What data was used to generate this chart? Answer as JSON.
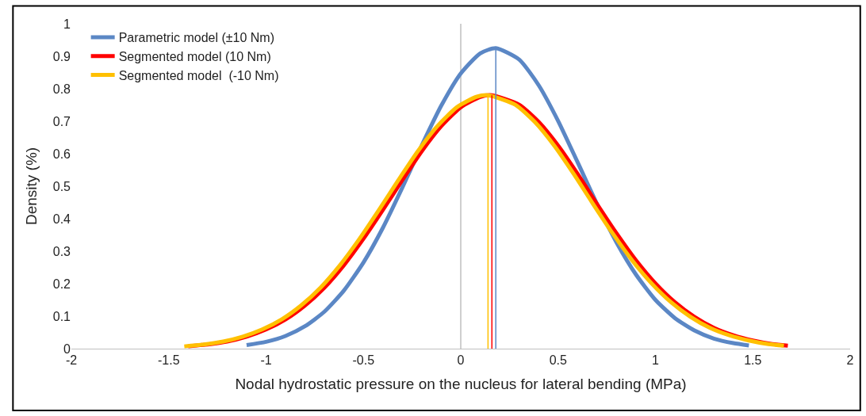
{
  "chart_data": {
    "type": "line",
    "xlabel": "Nodal hydrostatic pressure on the nucleus for lateral bending (MPa)",
    "ylabel": "Density (%)",
    "xlim": [
      -2,
      2
    ],
    "xticks": [
      -2,
      -1.5,
      -1,
      -0.5,
      0,
      0.5,
      1,
      1.5,
      2
    ],
    "ylim": [
      0,
      1
    ],
    "yticks": [
      0,
      0.1,
      0.2,
      0.3,
      0.4,
      0.5,
      0.6,
      0.7,
      0.8,
      0.9,
      1
    ],
    "grid": false,
    "legend": "top left",
    "ref_lines": [
      {
        "axis": "x",
        "value": 0,
        "color": "#bfbfbf"
      }
    ],
    "series": [
      {
        "name": "Parametric model (±10 Nm)",
        "color": "#5b87c5",
        "x": [
          -1.1,
          -1.0,
          -0.9,
          -0.8,
          -0.7,
          -0.6,
          -0.5,
          -0.4,
          -0.3,
          -0.2,
          -0.1,
          0,
          0.1,
          0.18,
          0.3,
          0.4,
          0.5,
          0.6,
          0.7,
          0.8,
          0.9,
          1.0,
          1.1,
          1.2,
          1.3,
          1.4,
          1.48
        ],
        "values": [
          0.011,
          0.021,
          0.039,
          0.069,
          0.114,
          0.179,
          0.265,
          0.372,
          0.496,
          0.626,
          0.748,
          0.847,
          0.909,
          0.925,
          0.89,
          0.811,
          0.701,
          0.574,
          0.445,
          0.327,
          0.228,
          0.15,
          0.094,
          0.056,
          0.031,
          0.017,
          0.01
        ]
      },
      {
        "name": "Segmented model (10 Nm)",
        "color": "#ff0000",
        "x": [
          -1.4,
          -1.3,
          -1.2,
          -1.1,
          -1.0,
          -0.9,
          -0.8,
          -0.7,
          -0.6,
          -0.5,
          -0.4,
          -0.3,
          -0.2,
          -0.1,
          0,
          0.1,
          0.16,
          0.3,
          0.4,
          0.5,
          0.6,
          0.7,
          0.8,
          0.9,
          1.0,
          1.1,
          1.2,
          1.3,
          1.4,
          1.5,
          1.6,
          1.68
        ],
        "values": [
          0.007,
          0.013,
          0.022,
          0.037,
          0.059,
          0.09,
          0.133,
          0.188,
          0.257,
          0.338,
          0.427,
          0.519,
          0.608,
          0.685,
          0.743,
          0.775,
          0.78,
          0.751,
          0.698,
          0.625,
          0.538,
          0.445,
          0.355,
          0.272,
          0.201,
          0.143,
          0.098,
          0.064,
          0.041,
          0.025,
          0.014,
          0.009
        ]
      },
      {
        "name": "Segmented model  (-10 Nm)",
        "color": "#ffc000",
        "x": [
          -1.42,
          -1.32,
          -1.22,
          -1.12,
          -1.02,
          -0.92,
          -0.82,
          -0.72,
          -0.62,
          -0.52,
          -0.42,
          -0.32,
          -0.22,
          -0.12,
          -0.02,
          0.08,
          0.14,
          0.28,
          0.38,
          0.48,
          0.58,
          0.68,
          0.78,
          0.88,
          0.98,
          1.08,
          1.18,
          1.28,
          1.38,
          1.48,
          1.58,
          1.66
        ],
        "values": [
          0.007,
          0.013,
          0.022,
          0.037,
          0.059,
          0.09,
          0.133,
          0.188,
          0.257,
          0.338,
          0.427,
          0.519,
          0.608,
          0.685,
          0.743,
          0.775,
          0.78,
          0.751,
          0.698,
          0.625,
          0.538,
          0.445,
          0.355,
          0.272,
          0.201,
          0.143,
          0.098,
          0.064,
          0.041,
          0.025,
          0.014,
          0.009
        ]
      },
      {
        "color": "#5b87c5",
        "x": [
          0.18,
          0.18
        ],
        "values": [
          0,
          0.925
        ]
      },
      {
        "color": "#ff0000",
        "x": [
          0.16,
          0.16
        ],
        "values": [
          0,
          0.78
        ]
      },
      {
        "color": "#ffc000",
        "x": [
          0.14,
          0.14
        ],
        "values": [
          0,
          0.78
        ]
      }
    ]
  }
}
